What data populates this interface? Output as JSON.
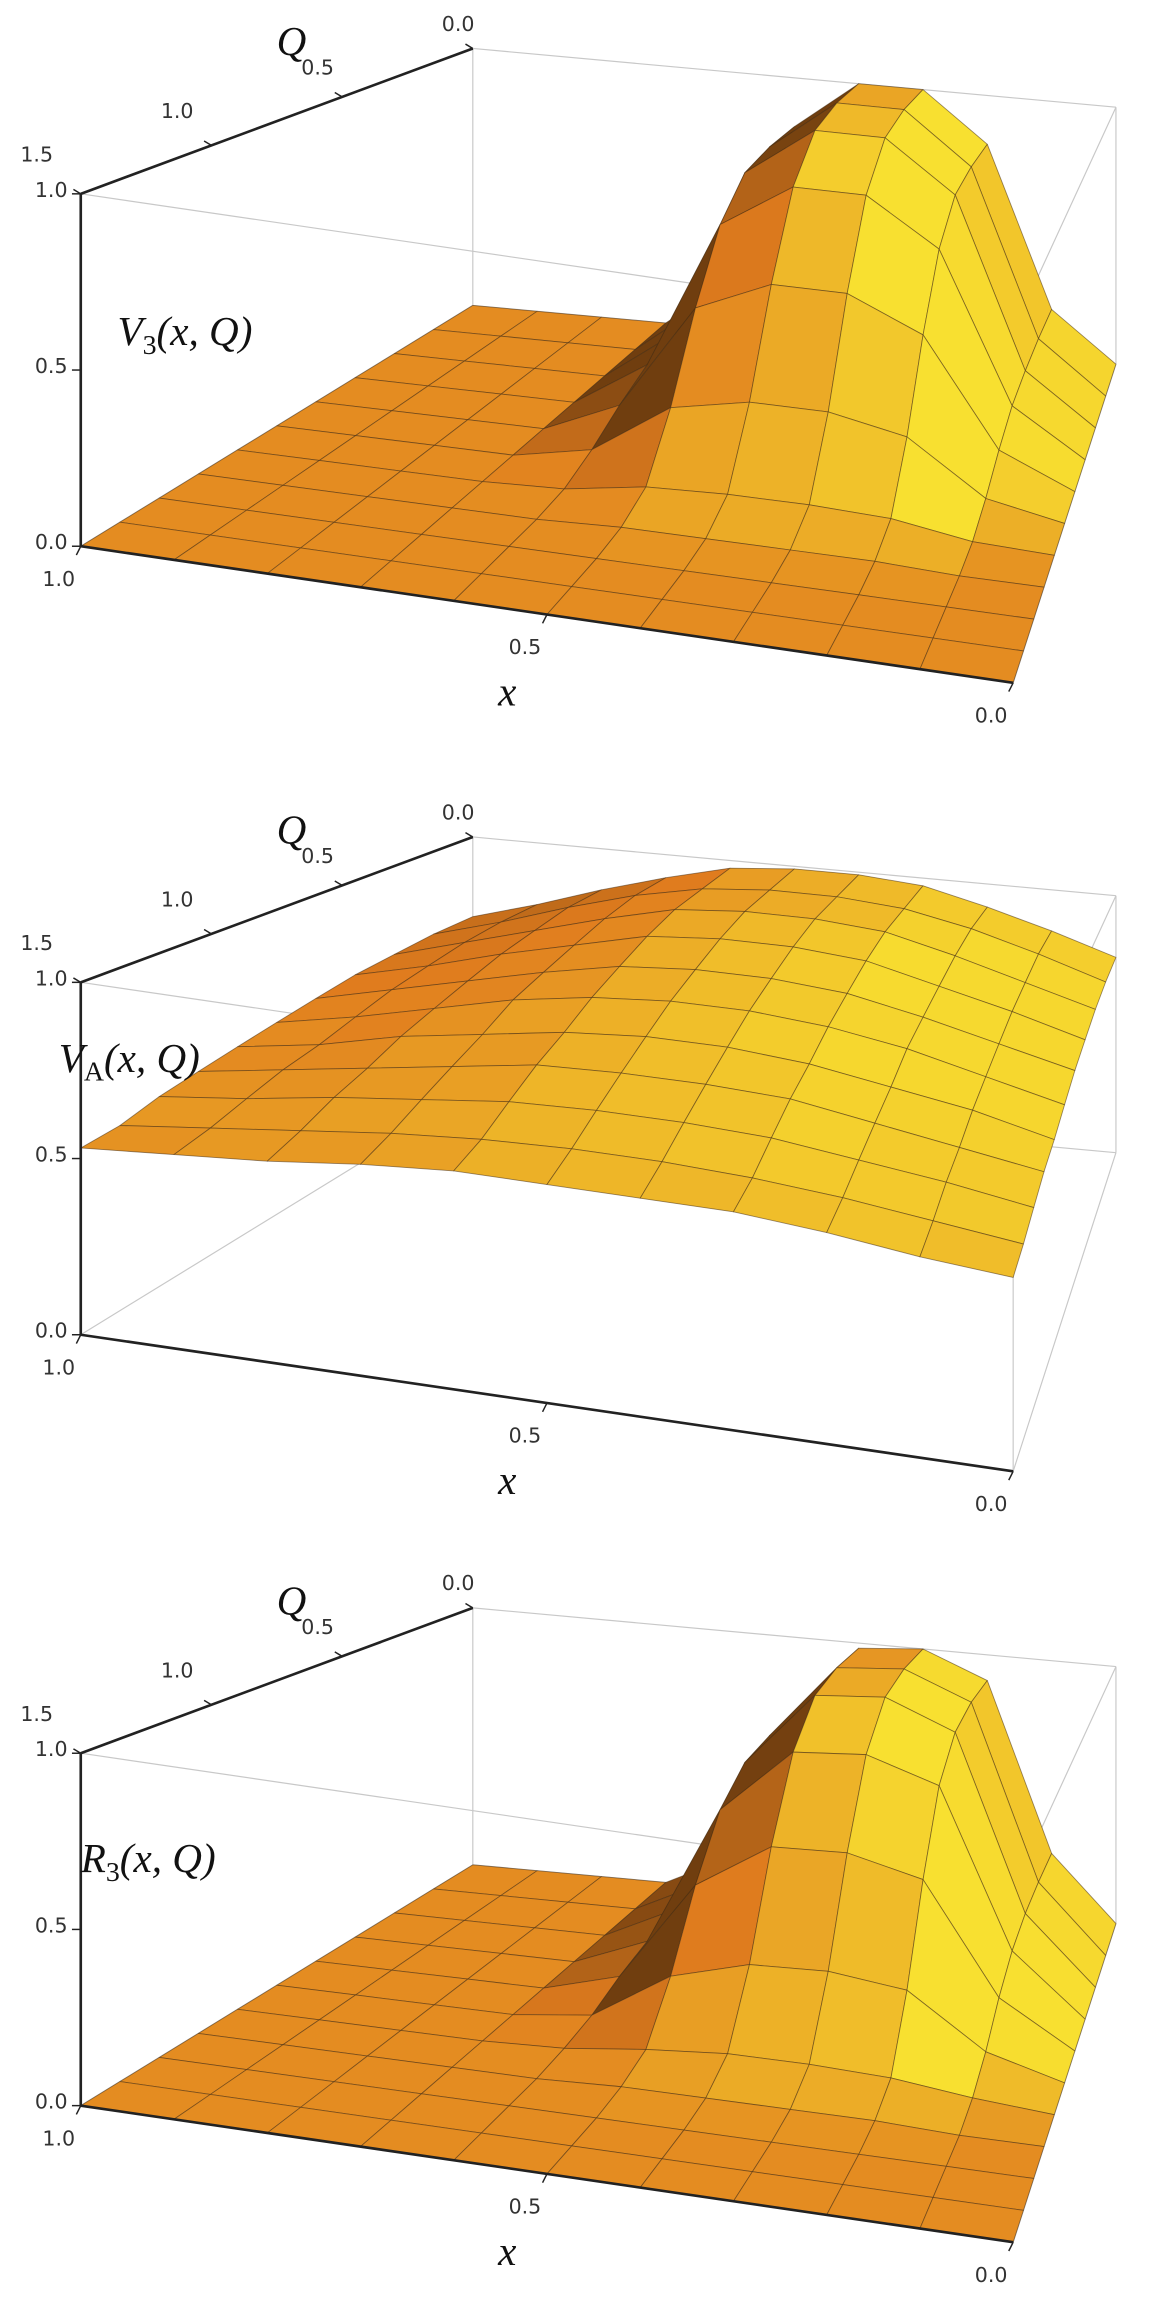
{
  "chart_data": [
    {
      "type": "surface",
      "zlabel": {
        "main": "V",
        "sub": "3",
        "rest": "(x, Q)"
      },
      "xlabel": "x",
      "ylabel": "Q",
      "color": "#e07c1e",
      "highlight_color": "#f8e030",
      "x": [
        0,
        0.1,
        0.2,
        0.3,
        0.4,
        0.5,
        0.6,
        0.7,
        0.8,
        0.9,
        1
      ],
      "y": [
        0,
        0.15,
        0.3,
        0.45,
        0.6,
        0.75,
        0.9,
        1.05,
        1.2,
        1.35,
        1.5
      ],
      "z": [
        [
          0,
          0.19,
          0.81,
          1,
          1,
          0.81,
          0.19,
          0,
          0,
          0,
          0
        ],
        [
          0,
          0.19,
          0.81,
          1,
          1,
          0.81,
          0.19,
          0,
          0,
          0,
          0
        ],
        [
          0,
          0.18,
          0.79,
          0.97,
          0.97,
          0.79,
          0.18,
          0,
          0,
          0,
          0
        ],
        [
          0,
          0.16,
          0.68,
          0.84,
          0.84,
          0.68,
          0.16,
          0,
          0,
          0,
          0
        ],
        [
          0,
          0.11,
          0.47,
          0.58,
          0.58,
          0.47,
          0.11,
          0,
          0,
          0,
          0
        ],
        [
          0,
          0.05,
          0.22,
          0.27,
          0.27,
          0.22,
          0.05,
          0,
          0,
          0,
          0
        ],
        [
          0,
          0.01,
          0.05,
          0.06,
          0.06,
          0.05,
          0.01,
          0,
          0,
          0,
          0
        ],
        [
          0,
          0,
          0.01,
          0.01,
          0.01,
          0.01,
          0,
          0,
          0,
          0,
          0
        ],
        [
          0,
          0,
          0,
          0,
          0,
          0,
          0,
          0,
          0,
          0,
          0
        ],
        [
          0,
          0,
          0,
          0,
          0,
          0,
          0,
          0,
          0,
          0,
          0
        ],
        [
          0,
          0,
          0,
          0,
          0,
          0,
          0,
          0,
          0,
          0,
          0
        ]
      ],
      "xlim": [
        0,
        1
      ],
      "ylim": [
        0,
        1.5
      ],
      "zlim": [
        0,
        1
      ],
      "xticks": [
        {
          "value": 0,
          "label": "0.0"
        },
        0.5,
        {
          "value": 1,
          "label": "1.0"
        }
      ],
      "yticks": [
        {
          "value": 0,
          "label": "0.0"
        },
        0.5,
        {
          "value": 1,
          "label": "1.0"
        },
        1.5
      ],
      "zticks": [
        {
          "value": 0,
          "label": "0.0"
        },
        0.5,
        {
          "value": 1,
          "label": "1.0"
        }
      ]
    },
    {
      "type": "surface",
      "zlabel": {
        "main": "V",
        "sub": "A",
        "rest": "(x, Q)"
      },
      "xlabel": "x",
      "ylabel": "Q",
      "color": "#e07c1e",
      "highlight_color": "#f8e030",
      "x": [
        0,
        0.1,
        0.2,
        0.3,
        0.4,
        0.5,
        0.6,
        0.7,
        0.8,
        0.9,
        1
      ],
      "y": [
        0,
        0.15,
        0.3,
        0.45,
        0.6,
        0.75,
        0.9,
        1.05,
        1.2,
        1.35,
        1.5
      ],
      "z": [
        [
          0.76,
          0.84,
          0.91,
          0.97,
          0.99,
          0.99,
          0.97,
          0.91,
          0.84,
          0.76,
          0.69
        ],
        [
          0.76,
          0.84,
          0.91,
          0.96,
          0.98,
          0.98,
          0.96,
          0.91,
          0.84,
          0.76,
          0.69
        ],
        [
          0.75,
          0.82,
          0.89,
          0.95,
          0.97,
          0.97,
          0.95,
          0.89,
          0.82,
          0.75,
          0.68
        ],
        [
          0.73,
          0.8,
          0.86,
          0.92,
          0.94,
          0.94,
          0.92,
          0.86,
          0.8,
          0.73,
          0.67
        ],
        [
          0.71,
          0.77,
          0.83,
          0.88,
          0.9,
          0.9,
          0.88,
          0.83,
          0.77,
          0.71,
          0.65
        ],
        [
          0.68,
          0.74,
          0.8,
          0.84,
          0.86,
          0.86,
          0.84,
          0.8,
          0.74,
          0.68,
          0.63
        ],
        [
          0.65,
          0.71,
          0.75,
          0.79,
          0.81,
          0.81,
          0.79,
          0.75,
          0.71,
          0.65,
          0.61
        ],
        [
          0.63,
          0.67,
          0.71,
          0.75,
          0.76,
          0.76,
          0.75,
          0.71,
          0.67,
          0.63,
          0.59
        ],
        [
          0.6,
          0.64,
          0.67,
          0.7,
          0.71,
          0.71,
          0.7,
          0.67,
          0.64,
          0.6,
          0.57
        ],
        [
          0.57,
          0.6,
          0.63,
          0.65,
          0.66,
          0.66,
          0.65,
          0.63,
          0.6,
          0.57,
          0.54
        ],
        [
          0.55,
          0.57,
          0.6,
          0.62,
          0.62,
          0.62,
          0.62,
          0.6,
          0.57,
          0.55,
          0.53
        ]
      ],
      "xlim": [
        0,
        1
      ],
      "ylim": [
        0,
        1.5
      ],
      "zlim": [
        0,
        1
      ],
      "xticks": [
        {
          "value": 0,
          "label": "0.0"
        },
        0.5,
        {
          "value": 1,
          "label": "1.0"
        }
      ],
      "yticks": [
        {
          "value": 0,
          "label": "0.0"
        },
        0.5,
        {
          "value": 1,
          "label": "1.0"
        },
        1.5
      ],
      "zticks": [
        {
          "value": 0,
          "label": "0.0"
        },
        0.5,
        {
          "value": 1,
          "label": "1.0"
        }
      ]
    },
    {
      "type": "surface",
      "zlabel": {
        "main": "R",
        "sub": "3",
        "rest": "(x, Q)"
      },
      "xlabel": "x",
      "ylabel": "Q",
      "color": "#e07c1e",
      "highlight_color": "#f8e030",
      "x": [
        0,
        0.1,
        0.2,
        0.3,
        0.4,
        0.5,
        0.6,
        0.7,
        0.8,
        0.9,
        1
      ],
      "y": [
        0,
        0.15,
        0.3,
        0.45,
        0.6,
        0.75,
        0.9,
        1.05,
        1.2,
        1.35,
        1.5
      ],
      "z": [
        [
          0,
          0.25,
          0.9,
          1,
          0.98,
          0.7,
          0.12,
          0,
          0,
          0,
          0
        ],
        [
          0,
          0.25,
          0.9,
          1,
          0.98,
          0.7,
          0.12,
          0,
          0,
          0,
          0
        ],
        [
          0,
          0.24,
          0.87,
          0.97,
          0.95,
          0.68,
          0.12,
          0,
          0,
          0,
          0
        ],
        [
          0,
          0.21,
          0.76,
          0.84,
          0.82,
          0.59,
          0.1,
          0,
          0,
          0,
          0
        ],
        [
          0,
          0.15,
          0.52,
          0.58,
          0.57,
          0.41,
          0.07,
          0,
          0,
          0,
          0
        ],
        [
          0,
          0.07,
          0.24,
          0.27,
          0.26,
          0.19,
          0.03,
          0,
          0,
          0,
          0
        ],
        [
          0,
          0.02,
          0.05,
          0.06,
          0.06,
          0.04,
          0.01,
          0,
          0,
          0,
          0
        ],
        [
          0,
          0,
          0.01,
          0.01,
          0.01,
          0.01,
          0,
          0,
          0,
          0,
          0
        ],
        [
          0,
          0,
          0,
          0,
          0,
          0,
          0,
          0,
          0,
          0,
          0
        ],
        [
          0,
          0,
          0,
          0,
          0,
          0,
          0,
          0,
          0,
          0,
          0
        ],
        [
          0,
          0,
          0,
          0,
          0,
          0,
          0,
          0,
          0,
          0,
          0
        ]
      ],
      "xlim": [
        0,
        1
      ],
      "ylim": [
        0,
        1.5
      ],
      "zlim": [
        0,
        1
      ],
      "xticks": [
        {
          "value": 0,
          "label": "0.0"
        },
        0.5,
        {
          "value": 1,
          "label": "1.0"
        }
      ],
      "yticks": [
        {
          "value": 0,
          "label": "0.0"
        },
        0.5,
        {
          "value": 1,
          "label": "1.0"
        },
        1.5
      ],
      "zticks": [
        {
          "value": 0,
          "label": "0.0"
        },
        0.5,
        {
          "value": 1,
          "label": "1.0"
        }
      ]
    }
  ]
}
